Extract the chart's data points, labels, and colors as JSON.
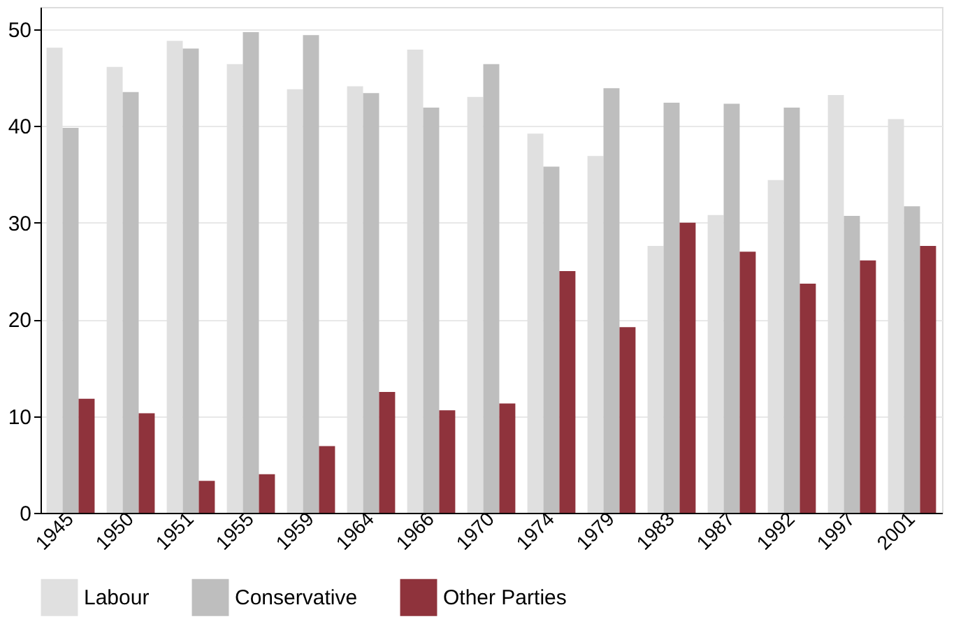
{
  "chart_data": {
    "type": "bar",
    "categories": [
      "1945",
      "1950",
      "1951",
      "1955",
      "1959",
      "1964",
      "1966",
      "1970",
      "1974",
      "1979",
      "1983",
      "1987",
      "1992",
      "1997",
      "2001"
    ],
    "series": [
      {
        "name": "Labour",
        "color": "#e0e0e0",
        "values": [
          48.1,
          46.1,
          48.8,
          46.4,
          43.8,
          44.1,
          47.9,
          43.0,
          39.2,
          36.9,
          27.6,
          30.8,
          34.4,
          43.2,
          40.7
        ]
      },
      {
        "name": "Conservative",
        "color": "#bebebe",
        "values": [
          39.8,
          43.5,
          48.0,
          49.7,
          49.4,
          43.4,
          41.9,
          46.4,
          35.8,
          43.9,
          42.4,
          42.3,
          41.9,
          30.7,
          31.7
        ]
      },
      {
        "name": "Other Parties",
        "color": "#8f333c",
        "values": [
          11.8,
          10.3,
          3.3,
          4.0,
          6.9,
          12.5,
          10.6,
          11.3,
          25.0,
          19.2,
          30.0,
          27.0,
          23.7,
          26.1,
          27.6
        ]
      }
    ],
    "ylim": [
      0,
      52.3
    ],
    "yticks": [
      0,
      10,
      20,
      30,
      40,
      50
    ],
    "grid": "y",
    "legend": "bottom"
  }
}
